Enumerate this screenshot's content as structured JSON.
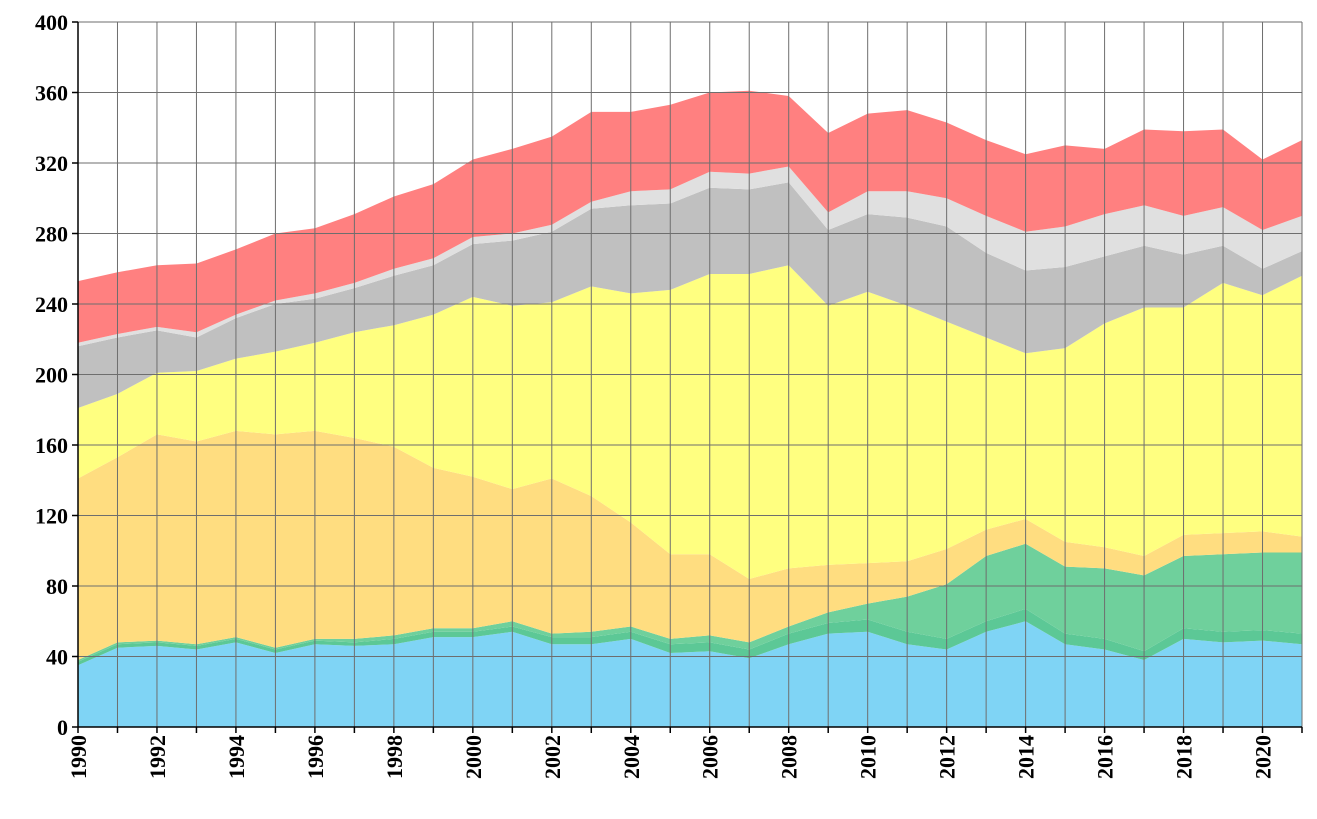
{
  "chart_data": {
    "type": "area",
    "stacked": true,
    "title": "",
    "xlabel": "",
    "ylabel": "",
    "ylim": [
      0,
      400
    ],
    "y_ticks": [
      0,
      40,
      80,
      120,
      160,
      200,
      240,
      280,
      320,
      360,
      400
    ],
    "xlim": [
      1990,
      2021
    ],
    "x_tick_labels": [
      "1990",
      "1992",
      "1994",
      "1996",
      "1998",
      "2000",
      "2002",
      "2004",
      "2006",
      "2008",
      "2010",
      "2012",
      "2014",
      "2016",
      "2018",
      "2020"
    ],
    "grid": true,
    "legend": "none",
    "x": [
      1990,
      1991,
      1992,
      1993,
      1994,
      1995,
      1996,
      1997,
      1998,
      1999,
      2000,
      2001,
      2002,
      2003,
      2004,
      2005,
      2006,
      2007,
      2008,
      2009,
      2010,
      2011,
      2012,
      2013,
      2014,
      2015,
      2016,
      2017,
      2018,
      2019,
      2020,
      2021
    ],
    "series": [
      {
        "name": "blue",
        "color": "#7fd4f5",
        "values": [
          35,
          45,
          46,
          44,
          48,
          42,
          47,
          46,
          47,
          51,
          51,
          54,
          47,
          47,
          50,
          42,
          43,
          39,
          47,
          53,
          54,
          47,
          44,
          54,
          60,
          47,
          44,
          38,
          50,
          48,
          49,
          47
        ]
      },
      {
        "name": "green-1",
        "color": "#5cc896",
        "values": [
          2,
          2,
          2,
          2,
          2,
          2,
          2,
          2,
          3,
          3,
          3,
          3,
          4,
          4,
          4,
          5,
          5,
          5,
          6,
          6,
          7,
          7,
          6,
          6,
          7,
          6,
          6,
          5,
          6,
          6,
          6,
          6
        ]
      },
      {
        "name": "green-2",
        "color": "#6fd09c",
        "values": [
          1,
          1,
          1,
          1,
          1,
          1,
          1,
          2,
          2,
          2,
          2,
          3,
          2,
          3,
          3,
          3,
          4,
          4,
          4,
          6,
          9,
          20,
          31,
          37,
          37,
          38,
          40,
          43,
          41,
          44,
          44,
          46
        ]
      },
      {
        "name": "orange",
        "color": "#ffdd80",
        "values": [
          103,
          105,
          117,
          115,
          117,
          121,
          118,
          114,
          107,
          91,
          86,
          75,
          88,
          77,
          59,
          48,
          46,
          36,
          33,
          27,
          23,
          20,
          20,
          15,
          14,
          14,
          12,
          11,
          12,
          12,
          12,
          9
        ]
      },
      {
        "name": "yellow",
        "color": "#ffff80",
        "values": [
          40,
          36,
          35,
          40,
          41,
          47,
          50,
          60,
          69,
          87,
          102,
          104,
          100,
          119,
          130,
          150,
          159,
          173,
          172,
          147,
          154,
          145,
          129,
          109,
          94,
          110,
          127,
          141,
          129,
          142,
          134,
          148
        ]
      },
      {
        "name": "gray-dark",
        "color": "#c0c0c0",
        "values": [
          35,
          32,
          24,
          19,
          23,
          27,
          25,
          25,
          28,
          28,
          30,
          37,
          40,
          44,
          50,
          49,
          49,
          48,
          47,
          43,
          44,
          50,
          54,
          48,
          47,
          46,
          38,
          35,
          30,
          21,
          15,
          14
        ]
      },
      {
        "name": "gray-light",
        "color": "#e0e0e0",
        "values": [
          2,
          2,
          2,
          3,
          2,
          2,
          3,
          3,
          4,
          4,
          4,
          4,
          4,
          4,
          8,
          8,
          9,
          9,
          9,
          10,
          13,
          15,
          16,
          21,
          22,
          23,
          24,
          23,
          22,
          22,
          22,
          20
        ]
      },
      {
        "name": "red",
        "color": "#ff8080",
        "values": [
          35,
          35,
          35,
          39,
          37,
          38,
          37,
          39,
          41,
          42,
          44,
          48,
          50,
          51,
          45,
          48,
          45,
          47,
          40,
          45,
          44,
          46,
          43,
          43,
          44,
          46,
          37,
          43,
          48,
          44,
          40,
          43
        ]
      }
    ]
  }
}
